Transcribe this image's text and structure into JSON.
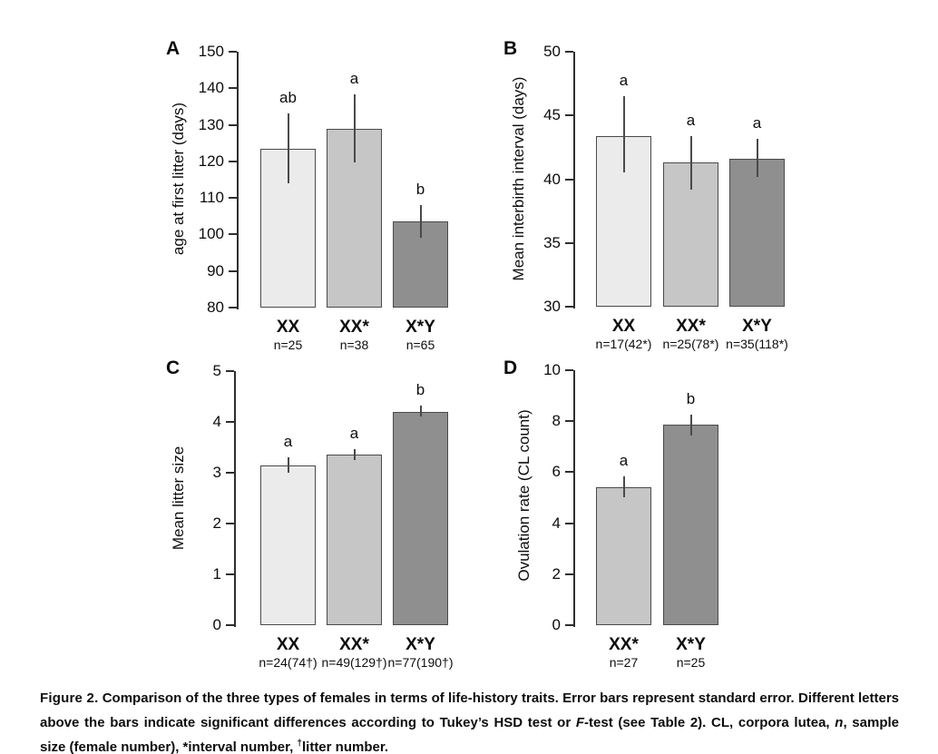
{
  "figure": {
    "caption_segments": [
      {
        "text": "Figure 2.",
        "style": "label"
      },
      {
        "text": " Comparison of the three types of females in terms of life-history traits. Error bars represent standard error. Different letters above the bars indicate significant differences according to Tukey’s HSD test or ",
        "style": "normal"
      },
      {
        "text": "F",
        "style": "italic"
      },
      {
        "text": "-test (see Table 2). CL, corpora lutea, ",
        "style": "normal"
      },
      {
        "text": "n",
        "style": "italic"
      },
      {
        "text": ", sample size (female number), *interval number, ",
        "style": "normal"
      },
      {
        "text": "†",
        "style": "superscript"
      },
      {
        "text": "litter number.",
        "style": "normal"
      }
    ]
  },
  "colors": {
    "bar_light": "#ebebeb",
    "bar_medium": "#c6c6c6",
    "bar_dark": "#8f8f8f",
    "bar_border": "#4a4a4a",
    "error_bar": "#4a4a4a",
    "axis": "#2e2e2e",
    "text": "#0d0d0d"
  },
  "chart_data": [
    {
      "panel": "A",
      "type": "bar",
      "ylabel": "age at first litter (days)",
      "ylim": [
        80,
        150
      ],
      "yticks": [
        80,
        90,
        100,
        110,
        120,
        130,
        140,
        150
      ],
      "categories": [
        "XX",
        "XX*",
        "X*Y"
      ],
      "n_labels": [
        "n=25",
        "n=38",
        "n=65"
      ],
      "values": [
        123.5,
        129.0,
        103.6
      ],
      "err_low": [
        114.0,
        119.8,
        99.0
      ],
      "err_high": [
        133.0,
        138.4,
        108.1
      ],
      "sig_letters": [
        "ab",
        "a",
        "b"
      ],
      "bar_colors": [
        "#ebebeb",
        "#c6c6c6",
        "#8f8f8f"
      ]
    },
    {
      "panel": "B",
      "type": "bar",
      "ylabel": "Mean interbirth interval (days)",
      "ylim": [
        30,
        50
      ],
      "yticks": [
        30,
        35,
        40,
        45,
        50
      ],
      "categories": [
        "XX",
        "XX*",
        "X*Y"
      ],
      "n_labels": [
        "n=17(42*)",
        "n=25(78*)",
        "n=35(118*)"
      ],
      "values": [
        43.4,
        41.3,
        41.6
      ],
      "err_low": [
        40.5,
        39.2,
        40.2
      ],
      "err_high": [
        46.5,
        43.4,
        43.2
      ],
      "sig_letters": [
        "a",
        "a",
        "a"
      ],
      "bar_colors": [
        "#ebebeb",
        "#c6c6c6",
        "#8f8f8f"
      ]
    },
    {
      "panel": "C",
      "type": "bar",
      "ylabel": "Mean litter size",
      "ylim": [
        0,
        5
      ],
      "yticks": [
        0,
        1,
        2,
        3,
        4,
        5
      ],
      "categories": [
        "XX",
        "XX*",
        "X*Y"
      ],
      "n_labels": [
        "n=24(74†)",
        "n=49(129†)",
        "n=77(190†)"
      ],
      "values": [
        3.15,
        3.36,
        4.2
      ],
      "err_low": [
        3.0,
        3.25,
        4.1
      ],
      "err_high": [
        3.3,
        3.47,
        4.33
      ],
      "sig_letters": [
        "a",
        "a",
        "b"
      ],
      "bar_colors": [
        "#ebebeb",
        "#c6c6c6",
        "#8f8f8f"
      ]
    },
    {
      "panel": "D",
      "type": "bar",
      "ylabel": "Ovulation rate (CL count)",
      "ylim": [
        0,
        10
      ],
      "yticks": [
        0,
        2,
        4,
        6,
        8,
        10
      ],
      "categories": [
        "XX*",
        "X*Y"
      ],
      "n_labels": [
        "n=27",
        "n=25"
      ],
      "values": [
        5.4,
        7.85
      ],
      "err_low": [
        5.0,
        7.45
      ],
      "err_high": [
        5.84,
        8.27
      ],
      "sig_letters": [
        "a",
        "b"
      ],
      "bar_colors": [
        "#c6c6c6",
        "#8f8f8f"
      ]
    }
  ]
}
